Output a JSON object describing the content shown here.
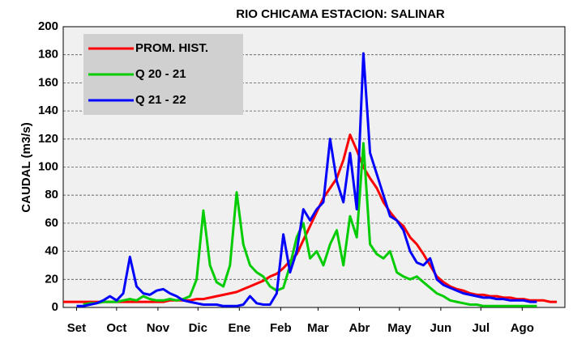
{
  "chart_data": {
    "type": "line",
    "title": "RIO CHICAMA ESTACION: SALINAR",
    "y_label": "CAUDAL (m3/s)",
    "x": [
      -10,
      -5,
      0,
      5,
      10,
      15,
      20,
      25,
      30,
      35,
      40,
      45,
      50,
      55,
      60,
      65,
      70,
      75,
      80,
      85,
      90,
      95,
      100,
      105,
      110,
      115,
      120,
      125,
      130,
      135,
      140,
      145,
      150,
      155,
      160,
      165,
      170,
      175,
      180,
      185,
      190,
      195,
      200,
      205,
      210,
      215,
      220,
      225,
      230,
      235,
      240,
      245,
      250,
      255,
      260,
      265,
      270,
      275,
      280,
      285,
      290,
      295,
      300,
      305,
      310,
      315,
      320,
      325,
      330,
      335,
      340,
      345,
      350,
      355,
      360
    ],
    "xlim": [
      -10,
      366
    ],
    "xticks": [
      {
        "value": 0,
        "label": "Set"
      },
      {
        "value": 30,
        "label": "Oct"
      },
      {
        "value": 61,
        "label": "Nov"
      },
      {
        "value": 91,
        "label": "Dic"
      },
      {
        "value": 122,
        "label": "Ene"
      },
      {
        "value": 153,
        "label": "Feb"
      },
      {
        "value": 181,
        "label": "Mar"
      },
      {
        "value": 212,
        "label": "Abr"
      },
      {
        "value": 242,
        "label": "May"
      },
      {
        "value": 273,
        "label": "Jun"
      },
      {
        "value": 303,
        "label": "Jul"
      },
      {
        "value": 334,
        "label": "Ago"
      }
    ],
    "ylim": [
      0,
      200
    ],
    "yticks": [
      0,
      20,
      40,
      60,
      80,
      100,
      120,
      140,
      160,
      180,
      200
    ],
    "grid": true,
    "legend": "upper left",
    "series": [
      {
        "name": "PROM. HIST.",
        "color": "#ff0000",
        "values": [
          4,
          4,
          4,
          4,
          4,
          4,
          4,
          4,
          4,
          4,
          4,
          4,
          4,
          4,
          4,
          4,
          5,
          5,
          5,
          5,
          6,
          6,
          7,
          8,
          9,
          10,
          11,
          13,
          15,
          17,
          19,
          22,
          24,
          28,
          33,
          38,
          48,
          58,
          68,
          78,
          85,
          92,
          105,
          123,
          112,
          100,
          92,
          85,
          75,
          68,
          62,
          58,
          50,
          45,
          38,
          30,
          22,
          18,
          15,
          13,
          12,
          10,
          9,
          9,
          8,
          8,
          7,
          7,
          6,
          6,
          5,
          5,
          5,
          4,
          4
        ]
      },
      {
        "name": "Q 20 - 21",
        "color": "#00cc00",
        "values": [
          null,
          null,
          null,
          2,
          3,
          3,
          4,
          4,
          4,
          5,
          6,
          5,
          8,
          6,
          5,
          5,
          6,
          5,
          6,
          8,
          20,
          69,
          30,
          18,
          15,
          30,
          82,
          45,
          30,
          25,
          22,
          15,
          12,
          14,
          30,
          50,
          60,
          35,
          40,
          30,
          45,
          55,
          30,
          65,
          50,
          117,
          45,
          38,
          35,
          40,
          25,
          22,
          20,
          22,
          18,
          14,
          10,
          8,
          5,
          4,
          3,
          2,
          2,
          1,
          1,
          1,
          1,
          1,
          1,
          1,
          1,
          1,
          null,
          null,
          null
        ]
      },
      {
        "name": "Q 21 - 22",
        "color": "#0000ff",
        "values": [
          null,
          null,
          1,
          1,
          2,
          3,
          5,
          8,
          5,
          10,
          36,
          15,
          10,
          9,
          12,
          13,
          10,
          8,
          5,
          4,
          3,
          2,
          2,
          2,
          1,
          1,
          1,
          2,
          8,
          3,
          2,
          2,
          10,
          52,
          25,
          40,
          70,
          62,
          70,
          75,
          120,
          90,
          75,
          110,
          70,
          181,
          110,
          95,
          80,
          65,
          62,
          55,
          40,
          32,
          30,
          35,
          20,
          16,
          14,
          12,
          10,
          9,
          8,
          7,
          7,
          6,
          6,
          5,
          5,
          5,
          4,
          4,
          null,
          null,
          null
        ]
      }
    ]
  }
}
